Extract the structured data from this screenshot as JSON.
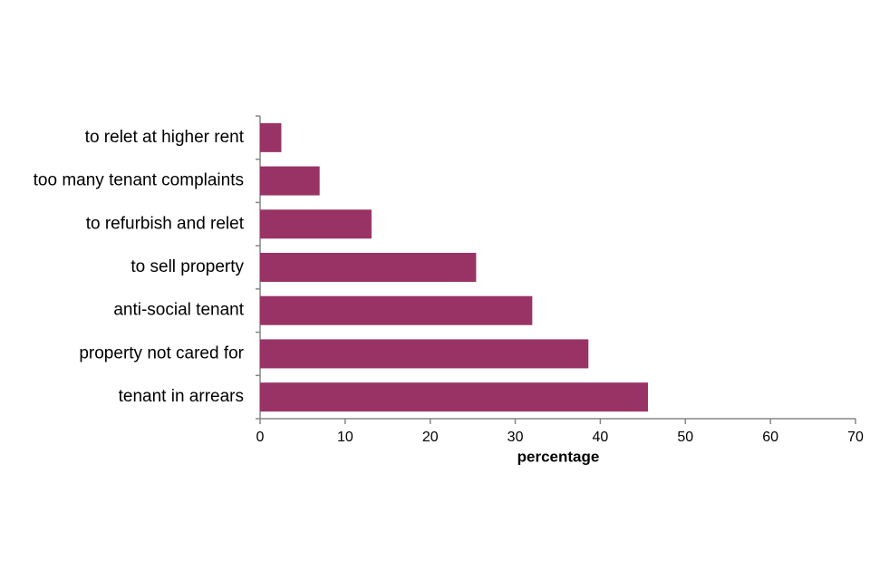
{
  "chart_data": {
    "type": "bar",
    "orientation": "horizontal",
    "categories": [
      "to relet at higher rent",
      "too many tenant complaints",
      "to refurbish and relet",
      "to sell property",
      "anti-social tenant",
      "property not cared for",
      "tenant in arrears"
    ],
    "values": [
      2.5,
      7,
      13.1,
      25.4,
      32,
      38.6,
      45.6
    ],
    "color": "#993366",
    "xlabel": "percentage",
    "xlim": [
      0,
      70
    ],
    "xticks": [
      0,
      10,
      20,
      30,
      40,
      50,
      60,
      70
    ],
    "grid": false
  }
}
